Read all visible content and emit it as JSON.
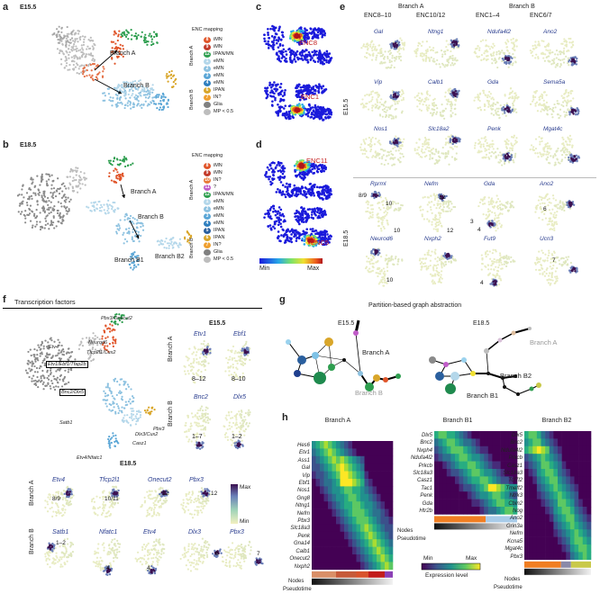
{
  "panels": {
    "a": {
      "letter": "a",
      "stage": "E15.5",
      "mapping_title": "ENC mapping",
      "branch_a_labels": [
        "Branch A"
      ],
      "branch_b_labels": [
        "Branch B"
      ],
      "legend": [
        {
          "num": "8",
          "label": "iMN",
          "color": "#e0552a",
          "group": "Branch A"
        },
        {
          "num": "9",
          "label": "iMN",
          "color": "#c23b2b",
          "group": "Branch A"
        },
        {
          "num": "12",
          "label": "IPAN/MN",
          "color": "#2e9e4f",
          "group": "Branch A"
        },
        {
          "num": "1",
          "label": "eMN",
          "color": "#b4d7ea",
          "group": "Branch B"
        },
        {
          "num": "2",
          "label": "eMN",
          "color": "#8cc1e0",
          "group": "Branch B"
        },
        {
          "num": "3",
          "label": "eMN",
          "color": "#5aa6d6",
          "group": "Branch B"
        },
        {
          "num": "4",
          "label": "eMN",
          "color": "#2f7fbf",
          "group": "Branch B"
        },
        {
          "num": "6",
          "label": "IPAN",
          "color": "#d9a62a",
          "group": "Branch B"
        },
        {
          "num": "7",
          "label": "IN?",
          "color": "#f0a030",
          "group": "Branch B"
        },
        {
          "num": "",
          "label": "Glia",
          "color": "#808080",
          "group": ""
        },
        {
          "num": "",
          "label": "MP < 0.5",
          "color": "#bdbdbd",
          "group": ""
        }
      ],
      "group_a": "Branch A",
      "group_b": "Branch B"
    },
    "b": {
      "letter": "b",
      "stage": "E18.5",
      "mapping_title": "ENC mapping",
      "branch_labels": [
        "Branch A",
        "Branch B",
        "Branch B1",
        "Branch B2"
      ],
      "legend": [
        {
          "num": "8",
          "label": "iMN",
          "color": "#e0552a"
        },
        {
          "num": "9",
          "label": "iMN",
          "color": "#c23b2b"
        },
        {
          "num": "10",
          "label": "IN?",
          "color": "#e87a3a"
        },
        {
          "num": "11",
          "label": "?",
          "color": "#c05cc8"
        },
        {
          "num": "12",
          "label": "IPAN/MN",
          "color": "#2e9e4f"
        },
        {
          "num": "1",
          "label": "eMN",
          "color": "#b4d7ea"
        },
        {
          "num": "2",
          "label": "eMN",
          "color": "#8cc1e0"
        },
        {
          "num": "3",
          "label": "eMN",
          "color": "#5aa6d6"
        },
        {
          "num": "4",
          "label": "eMN",
          "color": "#2f7fbf"
        },
        {
          "num": "5",
          "label": "IPAN",
          "color": "#2a5f9e"
        },
        {
          "num": "6",
          "label": "IPAN",
          "color": "#d9a62a"
        },
        {
          "num": "7",
          "label": "IN?",
          "color": "#f0a030"
        },
        {
          "num": "",
          "label": "Glia",
          "color": "#808080"
        },
        {
          "num": "",
          "label": "MP < 0.5",
          "color": "#bdbdbd"
        }
      ],
      "group_a": "Branch A",
      "group_b": "Branch B"
    },
    "c": {
      "letter": "c",
      "labels": [
        "ENC8",
        "ENC1"
      ]
    },
    "d": {
      "letter": "d",
      "labels": [
        "ENC11",
        "ENC5"
      ],
      "min": "Min",
      "max": "Max"
    },
    "e": {
      "letter": "e",
      "branch_a": "Branch A",
      "branch_b": "Branch B",
      "cols": [
        "ENC8–10",
        "ENC10/12",
        "ENC1–4",
        "ENC6/7"
      ],
      "stage1": "E15.5",
      "stage2": "E18.5",
      "genes_e15": [
        "Gal",
        "Ntng1",
        "Ndufa4l2",
        "Ano2",
        "Vip",
        "Calb1",
        "Gda",
        "Sema5a",
        "Nos1",
        "Slc18a2",
        "Penk",
        "Mgat4c"
      ],
      "genes_e18": [
        "Rprml",
        "Nefm",
        "Gda",
        "Ano2",
        "Neurod6",
        "Nxph2",
        "Fut9",
        "Ucn3"
      ],
      "nums": [
        "8/9",
        "10",
        "10",
        "12",
        "3",
        "4",
        "6",
        "10",
        "12",
        "4",
        "7"
      ]
    },
    "f": {
      "letter": "f",
      "title": "Transcription factors",
      "stage1": "E15.5",
      "stage2": "E18.5",
      "tf_labels": [
        "Pbx3/Onecut2",
        "Neurod6",
        "Etv4",
        "Tfcp2l1/Cux2",
        "Etv1/Ebf1/Tfap2b",
        "Bnc2/Dlx5",
        "Satb1",
        "Pbx3",
        "Dlx3/Cux2",
        "Casz1",
        "Etv4/Nfatc1"
      ],
      "e15_genes": [
        "Etv1",
        "Ebf1",
        "Bnc2",
        "Dlx5"
      ],
      "e15_nums": [
        "8–12",
        "8–10",
        "1–7",
        "1–2"
      ],
      "e18_genes_a": [
        "Etv4",
        "Tfcp2l1",
        "Onecut2",
        "Pbx3"
      ],
      "e18_nums_a": [
        "8/9",
        "10/11",
        "12",
        "12"
      ],
      "e18_genes_b": [
        "Satb1",
        "Nfatc1",
        "Etv4",
        "Dlx3",
        "Pbx3"
      ],
      "e18_nums_b": [
        "1–2",
        "4",
        "4",
        "6",
        "7"
      ],
      "branch_a": "Branch A",
      "branch_b": "Branch B",
      "max": "Max",
      "min": "Min"
    },
    "g": {
      "letter": "g",
      "title": "Partition-based graph abstraction",
      "stage1": "E15.5",
      "stage2": "E18.5",
      "labels1": [
        "Branch A",
        "Branch B"
      ],
      "labels2": [
        "Branch A",
        "Branch B2",
        "Branch B1"
      ]
    },
    "h": {
      "letter": "h",
      "branch_a": {
        "title": "Branch A",
        "genes": [
          "Hes6",
          "Etv1",
          "Ass1",
          "Gal",
          "Vip",
          "Ebf1",
          "Nos1",
          "Gng8",
          "Ntng1",
          "Nefm",
          "Pbx3",
          "Slc18a3",
          "Penk",
          "Gna14",
          "Calb1",
          "Onecut2",
          "Nxph2"
        ]
      },
      "branch_b1": {
        "title": "Branch B1",
        "genes": [
          "Dlx5",
          "Bnc2",
          "Nxph4",
          "Ndufa4l2",
          "Prkcb",
          "Slc18a3",
          "Casz1",
          "Tac1",
          "Penk",
          "Gda",
          "Htr2b"
        ]
      },
      "branch_b2": {
        "title": "Branch B2",
        "genes": [
          "Dlx5",
          "Bnc2",
          "Ndufa4l2",
          "Prkcb",
          "Casz1",
          "Slc18a3",
          "Tcf7l2",
          "Tmeff2",
          "Ntrk3",
          "Cbln2",
          "Nog",
          "Ano2",
          "Grin3a",
          "Nefm",
          "Kcna5",
          "Mgat4c",
          "Pbx3"
        ]
      },
      "nodes": "Nodes",
      "pseudotime": "Pseudotime",
      "scale": {
        "min": "Min",
        "max": "Max",
        "label": "Expression level"
      }
    }
  }
}
